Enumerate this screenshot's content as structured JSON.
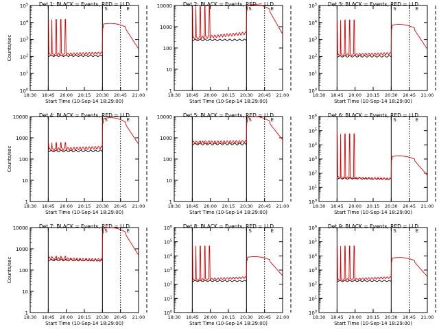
{
  "figure": {
    "xlabel": "Start Time (10-Sep-14 18:29:00)",
    "ylabel": "Counts/sec"
  },
  "chart_data": [
    {
      "type": "line",
      "title": "Det 1: BLACK = Events, RED = LLD",
      "scale": "log",
      "ylim": [
        1,
        100000
      ],
      "yticks": [
        "10^0",
        "10^1",
        "10^2",
        "10^3",
        "10^4",
        "10^5"
      ],
      "show_ylabel": true,
      "xticks": [
        "18:30",
        "18:45",
        "20:00",
        "20:15",
        "20:30",
        "20:45",
        "21:00"
      ],
      "profile": {
        "pre": 130,
        "mid": 160,
        "flare": 8000,
        "post": 280,
        "peak": 15000
      },
      "vlines": {
        "solid": [
          1,
          4
        ],
        "dotted": [
          5
        ],
        "dashed": [
          6
        ]
      },
      "markers": [
        "S",
        "E"
      ]
    },
    {
      "type": "line",
      "title": "Det 2: BLACK = Events, RED = LLD",
      "scale": "log",
      "ylim": [
        1,
        10000
      ],
      "yticks": [
        "1",
        "10",
        "100",
        "1000",
        "10000"
      ],
      "show_ylabel": false,
      "xticks": [
        "18:30",
        "18:45",
        "20:00",
        "20:15",
        "20:30",
        "20:45",
        "21:00"
      ],
      "profile": {
        "pre": 280,
        "mid": 500,
        "flare": 10000,
        "post": 450,
        "peak": 9000
      },
      "vlines": {
        "solid": [
          1,
          4
        ],
        "dotted": [
          5
        ],
        "dashed": [
          6
        ]
      },
      "markers": [
        "S",
        "E"
      ]
    },
    {
      "type": "line",
      "title": "Det 3: BLACK = Events, RED = LLD",
      "scale": "log",
      "ylim": [
        1,
        100000
      ],
      "yticks": [
        "10^0",
        "10^1",
        "10^2",
        "10^3",
        "10^4",
        "10^5"
      ],
      "show_ylabel": false,
      "xticks": [
        "18:30",
        "18:45",
        "20:00",
        "20:15",
        "20:30",
        "20:45",
        "21:00"
      ],
      "profile": {
        "pre": 120,
        "mid": 150,
        "flare": 7000,
        "post": 270,
        "peak": 14000
      },
      "vlines": {
        "solid": [
          1,
          4
        ],
        "dotted": [
          5
        ],
        "dashed": [
          6
        ]
      },
      "markers": [
        "S",
        "E"
      ]
    },
    {
      "type": "line",
      "title": "Det 4: BLACK = Events, RED = LLD",
      "scale": "log",
      "ylim": [
        1,
        10000
      ],
      "yticks": [
        "1",
        "10",
        "100",
        "1000",
        "10000"
      ],
      "show_ylabel": true,
      "xticks": [
        "18:30",
        "18:45",
        "20:00",
        "20:15",
        "20:30",
        "20:45",
        "21:00"
      ],
      "profile": {
        "pre": 280,
        "mid": 350,
        "flare": 8000,
        "post": 500,
        "peak": 600
      },
      "vlines": {
        "solid": [
          1,
          4
        ],
        "dotted": [
          5
        ],
        "dashed": [
          6
        ]
      },
      "markers": [
        "S",
        "E"
      ]
    },
    {
      "type": "line",
      "title": "Det 5: BLACK = Events, RED = LLD",
      "scale": "log",
      "ylim": [
        1,
        10000
      ],
      "yticks": [
        "1",
        "10",
        "100",
        "1000",
        "10000"
      ],
      "show_ylabel": false,
      "xticks": [
        "18:30",
        "18:45",
        "20:00",
        "20:15",
        "20:30",
        "20:45",
        "21:00"
      ],
      "profile": {
        "pre": 600,
        "mid": 650,
        "flare": 9000,
        "post": 800,
        "peak": 700
      },
      "vlines": {
        "solid": [
          1,
          4
        ],
        "dotted": [
          5
        ],
        "dashed": [
          6
        ]
      },
      "markers": [
        "S",
        "E"
      ]
    },
    {
      "type": "line",
      "title": "Det 6: BLACK = Events, RED = LLD",
      "scale": "log",
      "ylim": [
        1,
        1000000
      ],
      "yticks": [
        "10^0",
        "10^1",
        "10^2",
        "10^3",
        "10^4",
        "10^5",
        "10^6"
      ],
      "show_ylabel": false,
      "xticks": [
        "18:30",
        "18:45",
        "20:00",
        "20:15",
        "20:30",
        "20:45",
        "21:00"
      ],
      "profile": {
        "pre": 50,
        "mid": 40,
        "flare": 1500,
        "post": 70,
        "peak": 60000
      },
      "vlines": {
        "solid": [
          1,
          4
        ],
        "dotted": [
          5
        ],
        "dashed": [
          6
        ]
      },
      "markers": [
        "S",
        "E"
      ]
    },
    {
      "type": "line",
      "title": "Det 7: BLACK = Events, RED = LLD",
      "scale": "log",
      "ylim": [
        1,
        10000
      ],
      "yticks": [
        "1",
        "10",
        "100",
        "1000",
        "10000"
      ],
      "show_ylabel": true,
      "xticks": [
        "18:30",
        "18:45",
        "20:00",
        "20:15",
        "20:30",
        "20:45",
        "21:00"
      ],
      "profile": {
        "pre": 350,
        "mid": 300,
        "flare": 9000,
        "post": 500,
        "peak": 450
      },
      "vlines": {
        "solid": [
          1,
          4
        ],
        "dotted": [
          5
        ],
        "dashed": [
          6
        ]
      },
      "markers": [
        "S",
        "E"
      ]
    },
    {
      "type": "line",
      "title": "Det 8: BLACK = Events, RED = LLD",
      "scale": "log",
      "ylim": [
        1,
        1000000
      ],
      "yticks": [
        "10^0",
        "10^1",
        "10^2",
        "10^3",
        "10^4",
        "10^5",
        "10^6"
      ],
      "show_ylabel": false,
      "xticks": [
        "18:30",
        "18:45",
        "20:00",
        "20:15",
        "20:30",
        "20:45",
        "21:00"
      ],
      "profile": {
        "pre": 200,
        "mid": 300,
        "flare": 8000,
        "post": 400,
        "peak": 50000
      },
      "vlines": {
        "solid": [
          1,
          4
        ],
        "dotted": [
          5
        ],
        "dashed": [
          6
        ]
      },
      "markers": [
        "S",
        "E"
      ]
    },
    {
      "type": "line",
      "title": "Det 9: BLACK = Events, RED = LLD",
      "scale": "log",
      "ylim": [
        1,
        1000000
      ],
      "yticks": [
        "10^0",
        "10^1",
        "10^2",
        "10^3",
        "10^4",
        "10^5",
        "10^6"
      ],
      "show_ylabel": false,
      "xticks": [
        "18:30",
        "18:45",
        "20:00",
        "20:15",
        "20:30",
        "20:45",
        "21:00"
      ],
      "profile": {
        "pre": 200,
        "mid": 300,
        "flare": 7000,
        "post": 350,
        "peak": 50000
      },
      "vlines": {
        "solid": [
          1,
          4
        ],
        "dotted": [
          5
        ],
        "dashed": [
          6
        ]
      },
      "markers": [
        "S",
        "E"
      ]
    }
  ],
  "colors": {
    "events": "#000000",
    "lld": "#e00000",
    "axis": "#000000"
  }
}
